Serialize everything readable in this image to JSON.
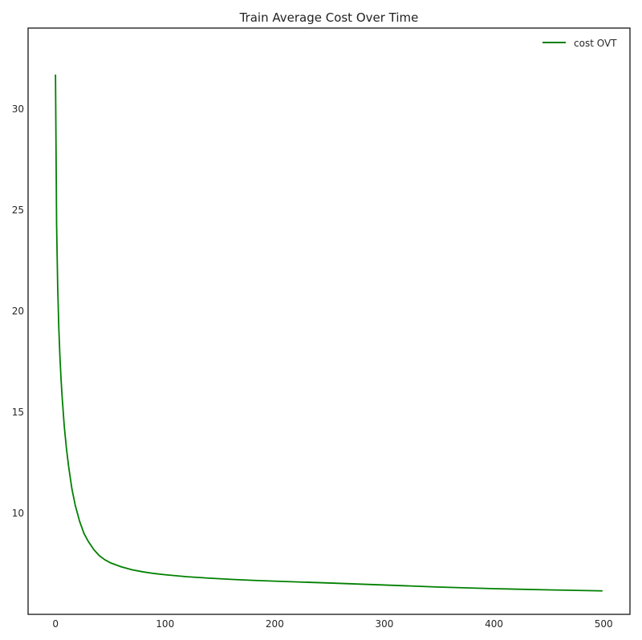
{
  "chart_data": {
    "type": "line",
    "title": "Train Average Cost Over Time",
    "xlabel": "",
    "ylabel": "",
    "xlim": [
      -25,
      524
    ],
    "ylim": [
      5.0,
      34.0
    ],
    "xticks": [
      0,
      100,
      200,
      300,
      400,
      500
    ],
    "yticks": [
      10,
      15,
      20,
      25,
      30
    ],
    "grid": false,
    "legend_position": "top-right",
    "series": [
      {
        "name": "cost OVT",
        "color": "#008000",
        "x": [
          0,
          1,
          2,
          3,
          4,
          5,
          6,
          8,
          10,
          12,
          15,
          18,
          22,
          26,
          30,
          35,
          40,
          45,
          50,
          55,
          60,
          70,
          80,
          90,
          100,
          120,
          140,
          160,
          180,
          200,
          250,
          300,
          350,
          400,
          450,
          499
        ],
        "y": [
          31.7,
          24.3,
          21.2,
          19.2,
          17.8,
          16.7,
          15.8,
          14.3,
          13.2,
          12.3,
          11.2,
          10.4,
          9.6,
          9.0,
          8.6,
          8.2,
          7.9,
          7.7,
          7.55,
          7.45,
          7.35,
          7.2,
          7.1,
          7.02,
          6.96,
          6.86,
          6.79,
          6.73,
          6.68,
          6.64,
          6.55,
          6.45,
          6.35,
          6.27,
          6.21,
          6.16
        ]
      }
    ]
  }
}
